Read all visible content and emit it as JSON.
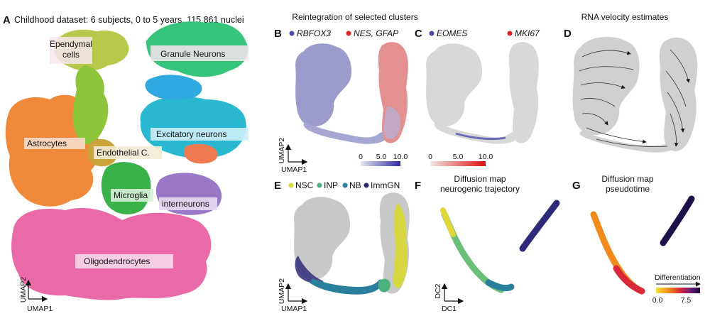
{
  "panelA": {
    "letter": "A",
    "title": "Childhood dataset: 6 subjects, 0 to 5 years, 115 861 nuclei",
    "clusters": {
      "ependymal_line1": "Ependymal",
      "ependymal_line2": "cells",
      "granule": "Granule Neurons",
      "astrocytes": "Astrocytes",
      "excitatory": "Excitatory neurons",
      "endothelial": "Endothelial C.",
      "microglia": "Microglia",
      "interneurons": "interneurons",
      "oligodendrocytes": "Oligodendrocytes"
    },
    "xaxis": "UMAP1",
    "yaxis": "UMAP2"
  },
  "header_bc": "Reintegration of selected clusters",
  "panelB": {
    "letter": "B",
    "gene1": "RBFOX3",
    "gene2": "NES, GFAP",
    "gene1_color": "#4a4aa8",
    "gene2_color": "#e02424",
    "xaxis": "UMAP1",
    "yaxis": "UMAP2",
    "scale_ticks": [
      "0",
      "5.0",
      "10.0"
    ]
  },
  "panelC": {
    "letter": "C",
    "gene1": "EOMES",
    "gene2": "MKI67",
    "gene1_color": "#4a4aa8",
    "gene2_color": "#e02424",
    "scale_ticks": [
      "0",
      "5.0",
      "10.0"
    ]
  },
  "panelD": {
    "letter": "D",
    "title": "RNA velocity estimates"
  },
  "panelE": {
    "letter": "E",
    "legend": [
      {
        "label": "NSC",
        "color": "#d8d832"
      },
      {
        "label": "INP",
        "color": "#4ab27a"
      },
      {
        "label": "NB",
        "color": "#2a7f9a"
      },
      {
        "label": "ImmGN",
        "color": "#2e2a7a"
      }
    ],
    "xaxis": "UMAP1",
    "yaxis": "UMAP2"
  },
  "panelF": {
    "letter": "F",
    "title_line1": "Diffusion map",
    "title_line2": "neurogenic trajectory",
    "xaxis": "DC1",
    "yaxis": "DC2"
  },
  "panelG": {
    "letter": "G",
    "title_line1": "Diffusion map",
    "title_line2": "pseudotime",
    "legend_title": "Differentiation",
    "scale_ticks": [
      "0.0",
      "7.5"
    ]
  }
}
